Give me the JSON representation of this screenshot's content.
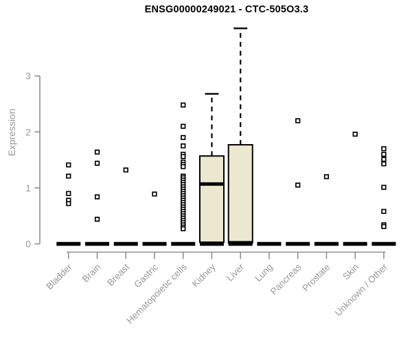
{
  "title": "ENSG00000249021 - CTC-505O3.3",
  "colors": {
    "box_fill": "#ece8cf",
    "box_stroke": "#000000",
    "point_stroke": "#000000",
    "point_fill": "#ffffff",
    "axis_line": "#8f8f8f",
    "axis_text": "#999999",
    "title_text": "#000000",
    "zero_bar": "#000000"
  },
  "chart_data": {
    "type": "boxplot",
    "title": "ENSG00000249021 - CTC-505O3.3",
    "xlabel": "",
    "ylabel": "Expression",
    "ylim": [
      0,
      3.9
    ],
    "yticks": [
      0,
      1,
      2,
      3
    ],
    "grid": false,
    "legend": false,
    "categories": [
      "Bladder",
      "Brain",
      "Breast",
      "Gastric",
      "Hematopoietic cells",
      "Kidney",
      "Liver",
      "Lung",
      "Pancreas",
      "Prostate",
      "Skin",
      "Unknown / Other"
    ],
    "series": [
      {
        "label": "Bladder",
        "median_bar_at_zero": true,
        "box": null,
        "points": [
          1.41,
          1.21,
          0.9,
          0.78,
          0.72
        ]
      },
      {
        "label": "Brain",
        "median_bar_at_zero": true,
        "box": null,
        "points": [
          1.64,
          1.44,
          0.84,
          0.44
        ]
      },
      {
        "label": "Breast",
        "median_bar_at_zero": true,
        "box": null,
        "points": [
          1.32
        ]
      },
      {
        "label": "Gastric",
        "median_bar_at_zero": true,
        "box": null,
        "points": [
          0.89
        ]
      },
      {
        "label": "Hematopoietic cells",
        "median_bar_at_zero": true,
        "box": null,
        "points": [
          2.48,
          2.1,
          1.9,
          1.75,
          1.6,
          1.56,
          1.46,
          1.42,
          1.38,
          1.21,
          1.18,
          1.14,
          1.1,
          1.06,
          1.02,
          0.98,
          0.94,
          0.9,
          0.86,
          0.82,
          0.78,
          0.74,
          0.7,
          0.66,
          0.62,
          0.58,
          0.54,
          0.5,
          0.46,
          0.42,
          0.38,
          0.34,
          0.3,
          0.27
        ]
      },
      {
        "label": "Kidney",
        "median_bar_at_zero": true,
        "box": {
          "q1": 0.03,
          "median": 1.07,
          "q3": 1.57,
          "whisker_high": 2.68,
          "whisker_low": 0
        },
        "points": []
      },
      {
        "label": "Liver",
        "median_bar_at_zero": true,
        "box": {
          "q1": 0.02,
          "median": 0.02,
          "q3": 1.77,
          "whisker_high": 3.85,
          "whisker_low": 0
        },
        "points": []
      },
      {
        "label": "Lung",
        "median_bar_at_zero": true,
        "box": null,
        "points": []
      },
      {
        "label": "Pancreas",
        "median_bar_at_zero": true,
        "box": null,
        "points": [
          2.2,
          1.05
        ]
      },
      {
        "label": "Prostate",
        "median_bar_at_zero": true,
        "box": null,
        "points": [
          1.2
        ]
      },
      {
        "label": "Skin",
        "median_bar_at_zero": true,
        "box": null,
        "points": [
          1.96
        ]
      },
      {
        "label": "Unknown / Other",
        "median_bar_at_zero": true,
        "box": null,
        "points": [
          1.7,
          1.6,
          1.51,
          1.43,
          1.01,
          0.58,
          0.34,
          0.31
        ]
      }
    ]
  }
}
